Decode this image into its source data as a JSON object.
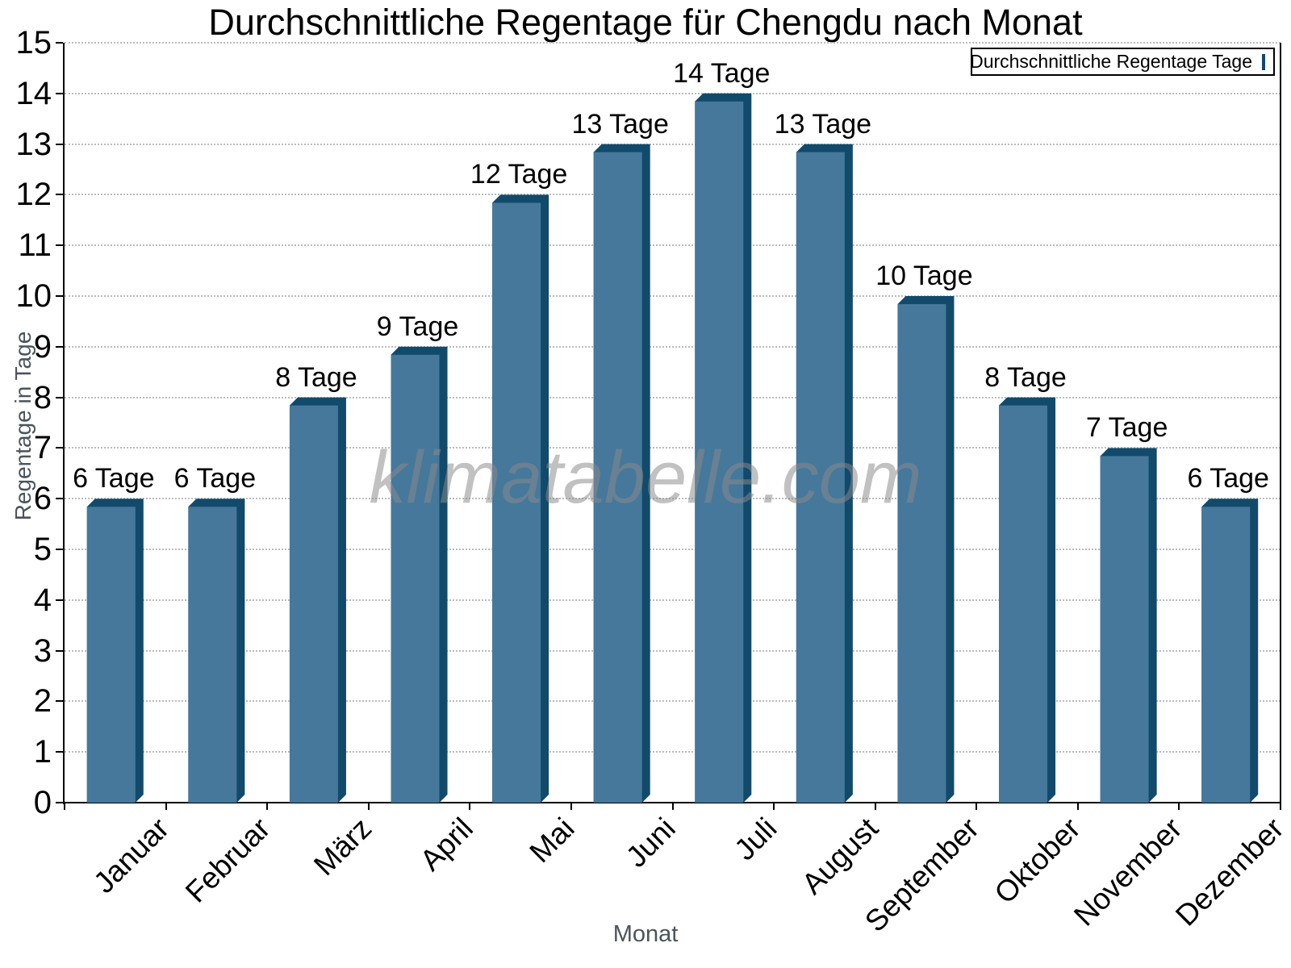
{
  "title": "Durchschnittliche Regentage für Chengdu nach Monat",
  "legend": {
    "label": "Durchschnittliche Regentage Tage"
  },
  "watermark": "klimatabelle.com",
  "axes": {
    "y_label": "Regentage in Tage",
    "x_label": "Monat"
  },
  "chart_data": {
    "type": "bar",
    "title": "Durchschnittliche Regentage für Chengdu nach Monat",
    "categories": [
      "Januar",
      "Februar",
      "März",
      "April",
      "Mai",
      "Juni",
      "Juli",
      "August",
      "September",
      "Oktober",
      "November",
      "Dezember"
    ],
    "series": [
      {
        "name": "Durchschnittliche Regentage Tage",
        "values": [
          6,
          6,
          8,
          9,
          12,
          13,
          14,
          13,
          10,
          8,
          7,
          6
        ]
      }
    ],
    "bar_labels": [
      "6 Tage",
      "6 Tage",
      "8 Tage",
      "9 Tage",
      "12 Tage",
      "13 Tage",
      "14 Tage",
      "13 Tage",
      "10 Tage",
      "8 Tage",
      "7 Tage",
      "6 Tage"
    ],
    "xlabel": "Monat",
    "ylabel": "Regentage in Tage",
    "ylim": [
      0,
      15
    ],
    "y_ticks": [
      0,
      1,
      2,
      3,
      4,
      5,
      6,
      7,
      8,
      9,
      10,
      11,
      12,
      13,
      14,
      15
    ],
    "grid": "horizontal-dotted",
    "legend_position": "top-right",
    "colors": {
      "bar_face": "#45789B",
      "bar_edge": "#114A6B",
      "grid": "#BCBCBC",
      "axis": "#000000",
      "axis_title_gray": "#4A545C",
      "watermark_gray": "#8A8A8A"
    }
  }
}
